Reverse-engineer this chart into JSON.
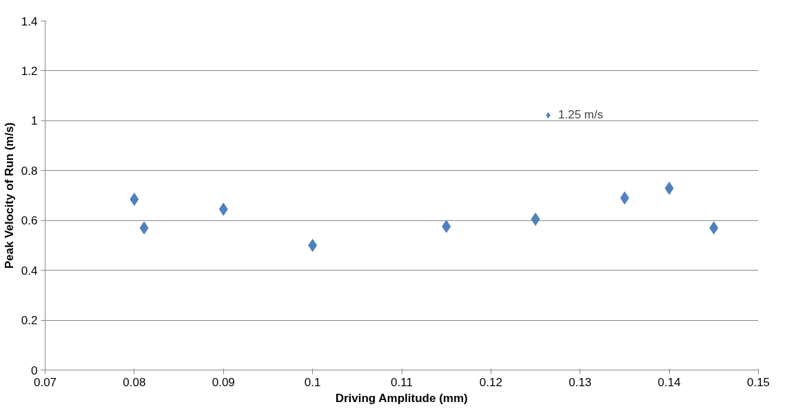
{
  "chart_data": {
    "type": "scatter",
    "xlabel": "Driving Amplitude (mm)",
    "ylabel": "Peak Velocity of Run (m/s)",
    "x": [
      0.08,
      0.0811,
      0.09,
      0.1,
      0.115,
      0.125,
      0.135,
      0.14,
      0.145
    ],
    "series": [
      {
        "name": "1.25 m/s",
        "color": "#4f81bd",
        "values": [
          0.685,
          0.57,
          0.645,
          0.5,
          0.576,
          0.605,
          0.69,
          0.729,
          0.57
        ]
      }
    ],
    "xlim": [
      0.07,
      0.15
    ],
    "xticks": [
      0.07,
      0.08,
      0.09,
      0.1,
      0.11,
      0.12,
      0.13,
      0.14,
      0.15
    ],
    "ylim": [
      0,
      1.4
    ],
    "yticks": [
      0,
      0.2,
      0.4,
      0.6,
      0.8,
      1,
      1.2,
      1.4
    ],
    "grid": "y",
    "legend": "top right",
    "marker": "diamond"
  }
}
